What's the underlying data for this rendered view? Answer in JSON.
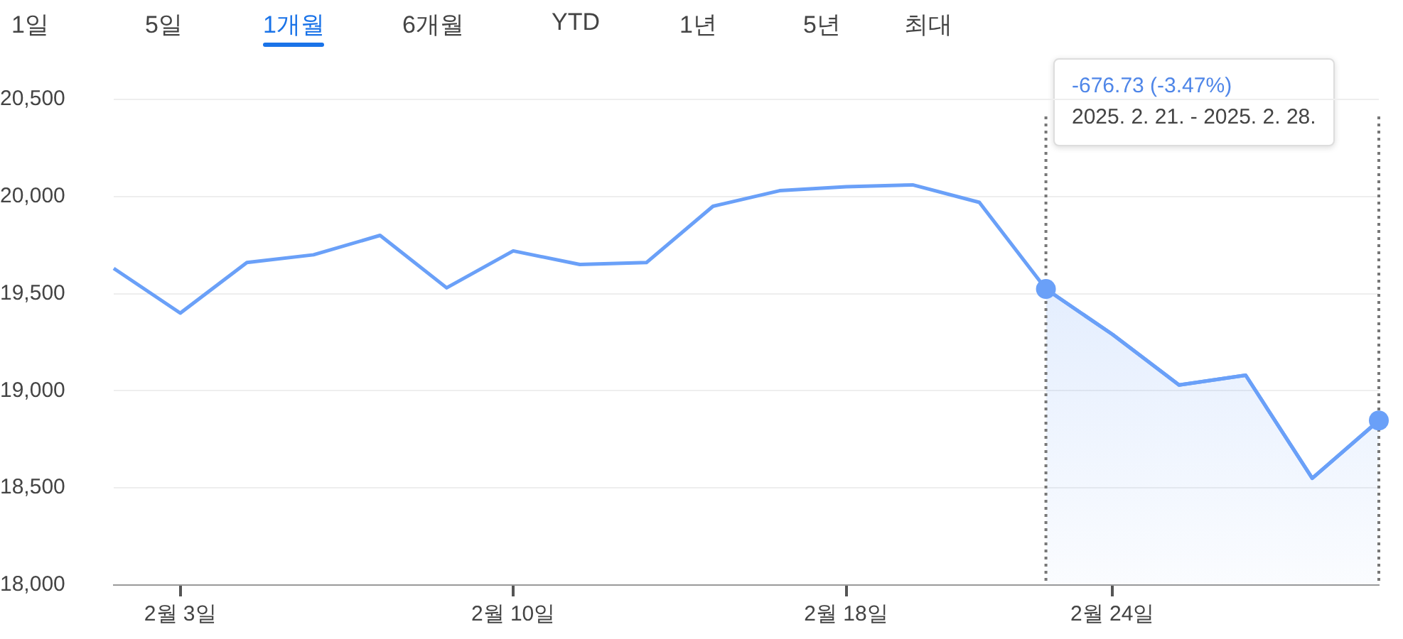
{
  "chart_data": {
    "type": "line",
    "categories": [
      null,
      "2월 3일",
      null,
      null,
      null,
      null,
      "2월 10일",
      null,
      null,
      null,
      null,
      "2월 18일",
      null,
      null,
      null,
      "2월 24일",
      null,
      null,
      null,
      null
    ],
    "series": [
      {
        "color": "#6aa0f8",
        "values": [
          19630,
          19400,
          19660,
          19700,
          19800,
          19530,
          19720,
          19650,
          19660,
          19950,
          20030,
          20050,
          20060,
          19970,
          19524,
          19290,
          19030,
          19080,
          18550,
          18847
        ]
      },
      {
        "type": "area",
        "color": "#6aa0f8",
        "values": [
          null,
          null,
          null,
          null,
          null,
          null,
          null,
          null,
          null,
          null,
          null,
          null,
          null,
          null,
          19524,
          19290,
          19030,
          19080,
          18550,
          18847
        ]
      }
    ],
    "ylim": [
      18000,
      20500
    ],
    "yticks": [
      {
        "value": 18000,
        "label": "18,000"
      },
      {
        "value": 18500,
        "label": "18,500"
      },
      {
        "value": 19000,
        "label": "19,000"
      },
      {
        "value": 19500,
        "label": "19,500"
      },
      {
        "value": 20000,
        "label": "20,000"
      },
      {
        "value": 20500,
        "label": "20,500"
      }
    ],
    "grid": "y",
    "legend": false,
    "marker": "none",
    "line_style": "solid",
    "annotations": [
      "1일",
      "5일",
      "1개월",
      "6개월",
      "YTD",
      "1년",
      "5년",
      "최대",
      "-676.73 (-3.47%)",
      "2025. 2. 21. - 2025. 2. 28."
    ]
  }
}
